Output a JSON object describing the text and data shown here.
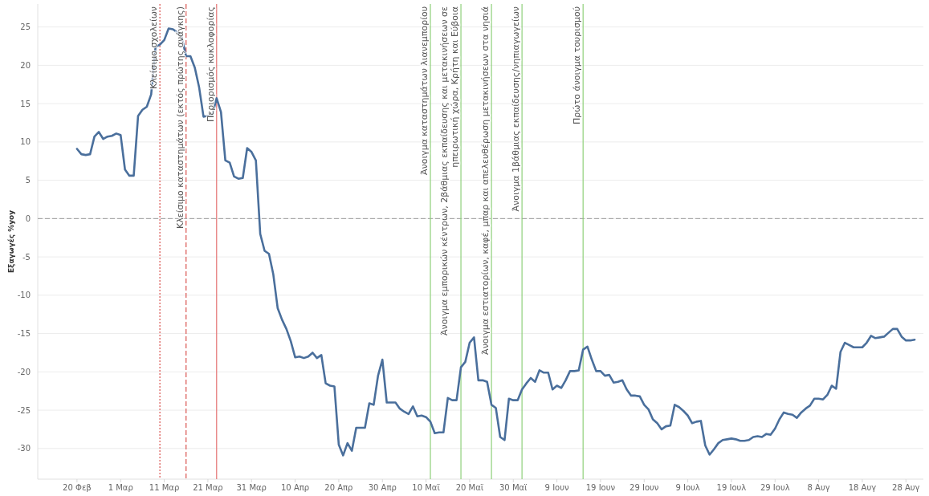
{
  "chart_data": {
    "type": "line",
    "ylabel": "Εξαγωγές %yoy",
    "x": [
      "--02-20",
      "--02-21",
      "--02-22",
      "--02-23",
      "--02-24",
      "--02-25",
      "--02-26",
      "--02-27",
      "--02-28",
      "--02-29",
      "--03-01",
      "--03-02",
      "--03-03",
      "--03-04",
      "--03-05",
      "--03-06",
      "--03-07",
      "--03-08",
      "--03-09",
      "--03-10",
      "--03-11",
      "--03-12",
      "--03-13",
      "--03-14",
      "--03-15",
      "--03-16",
      "--03-17",
      "--03-18",
      "--03-19",
      "--03-20",
      "--03-21",
      "--03-22",
      "--03-23",
      "--03-24",
      "--03-25",
      "--03-26",
      "--03-27",
      "--03-28",
      "--03-29",
      "--03-30",
      "--03-31",
      "--04-01",
      "--04-02",
      "--04-03",
      "--04-04",
      "--04-05",
      "--04-06",
      "--04-07",
      "--04-08",
      "--04-09",
      "--04-10",
      "--04-11",
      "--04-12",
      "--04-13",
      "--04-14",
      "--04-15",
      "--04-16",
      "--04-17",
      "--04-18",
      "--04-19",
      "--04-20",
      "--04-21",
      "--04-22",
      "--04-23",
      "--04-24",
      "--04-25",
      "--04-26",
      "--04-27",
      "--04-28",
      "--04-29",
      "--04-30",
      "--05-01",
      "--05-02",
      "--05-03",
      "--05-04",
      "--05-05",
      "--05-06",
      "--05-07",
      "--05-08",
      "--05-09",
      "--05-10",
      "--05-11",
      "--05-12",
      "--05-13",
      "--05-14",
      "--05-15",
      "--05-16",
      "--05-17",
      "--05-18",
      "--05-19",
      "--05-20",
      "--05-21",
      "--05-22",
      "--05-23",
      "--05-24",
      "--05-25",
      "--05-26",
      "--05-27",
      "--05-28",
      "--05-29",
      "--05-30",
      "--05-31",
      "--06-01",
      "--06-02",
      "--06-03",
      "--06-04",
      "--06-05",
      "--06-06",
      "--06-07",
      "--06-08",
      "--06-09",
      "--06-10",
      "--06-11",
      "--06-12",
      "--06-13",
      "--06-14",
      "--06-15",
      "--06-16",
      "--06-17",
      "--06-18",
      "--06-19",
      "--06-20",
      "--06-21",
      "--06-22",
      "--06-23",
      "--06-24",
      "--06-25",
      "--06-26",
      "--06-27",
      "--06-28",
      "--06-29",
      "--06-30",
      "--07-01",
      "--07-02",
      "--07-03",
      "--07-04",
      "--07-05",
      "--07-06",
      "--07-07",
      "--07-08",
      "--07-09",
      "--07-10",
      "--07-11",
      "--07-12",
      "--07-13",
      "--07-14",
      "--07-15",
      "--07-16",
      "--07-17",
      "--07-18",
      "--07-19",
      "--07-20",
      "--07-21",
      "--07-22",
      "--07-23",
      "--07-24",
      "--07-25",
      "--07-26",
      "--07-27",
      "--07-28",
      "--07-29",
      "--07-30",
      "--07-31",
      "--08-01",
      "--08-02",
      "--08-03",
      "--08-04",
      "--08-05",
      "--08-06",
      "--08-07",
      "--08-08",
      "--08-09",
      "--08-10",
      "--08-11",
      "--08-12",
      "--08-13",
      "--08-14",
      "--08-15",
      "--08-16",
      "--08-17",
      "--08-18",
      "--08-19",
      "--08-20",
      "--08-21",
      "--08-22",
      "--08-23",
      "--08-24",
      "--08-25",
      "--08-26",
      "--08-27",
      "--08-28",
      "--08-29",
      "--08-30"
    ],
    "series": [
      {
        "color": "#4a6f9c",
        "values": [
          9.1,
          8.4,
          8.3,
          8.4,
          10.7,
          11.3,
          10.4,
          10.7,
          10.8,
          11.1,
          10.9,
          6.4,
          5.6,
          5.6,
          13.4,
          14.2,
          14.6,
          16.2,
          22.4,
          22.7,
          23.3,
          24.8,
          24.7,
          24.3,
          23.7,
          21.2,
          21.2,
          19.7,
          17.1,
          13.3,
          13.4,
          13.5,
          15.7,
          13.9,
          7.6,
          7.3,
          5.5,
          5.2,
          5.3,
          9.2,
          8.7,
          7.6,
          -2,
          -4.2,
          -4.6,
          -7.3,
          -11.7,
          -13.2,
          -14.4,
          -16,
          -18.1,
          -18,
          -18.2,
          -18,
          -17.5,
          -18.2,
          -17.8,
          -21.5,
          -21.8,
          -21.9,
          -29.5,
          -30.9,
          -29.3,
          -30.3,
          -27.3,
          -27.3,
          -27.3,
          -24.1,
          -24.3,
          -20.5,
          -18.4,
          -24,
          -24,
          -24,
          -24.8,
          -25.2,
          -25.5,
          -24.5,
          -25.8,
          -25.7,
          -25.9,
          -26.5,
          -28,
          -27.9,
          -27.9,
          -23.4,
          -23.7,
          -23.7,
          -19.4,
          -18.7,
          -16.2,
          -15.5,
          -21.1,
          -21.1,
          -21.3,
          -24.3,
          -24.7,
          -28.5,
          -28.9,
          -23.5,
          -23.7,
          -23.7,
          -22.3,
          -21.5,
          -20.8,
          -21.3,
          -19.8,
          -20.1,
          -20.1,
          -22.3,
          -21.8,
          -22.1,
          -21.1,
          -19.9,
          -19.9,
          -19.8,
          -17.1,
          -16.7,
          -18.4,
          -19.9,
          -19.9,
          -20.5,
          -20.4,
          -21.4,
          -21.3,
          -21.1,
          -22.3,
          -23.1,
          -23.1,
          -23.2,
          -24.3,
          -24.9,
          -26.2,
          -26.7,
          -27.5,
          -27.1,
          -27,
          -24.3,
          -24.6,
          -25.1,
          -25.7,
          -26.7,
          -26.5,
          -26.4,
          -29.6,
          -30.8,
          -30.1,
          -29.3,
          -28.9,
          -28.8,
          -28.7,
          -28.8,
          -29,
          -29,
          -28.9,
          -28.5,
          -28.4,
          -28.5,
          -28.1,
          -28.2,
          -27.4,
          -26.2,
          -25.3,
          -25.5,
          -25.6,
          -26,
          -25.3,
          -24.8,
          -24.4,
          -23.5,
          -23.5,
          -23.6,
          -23,
          -21.8,
          -22.2,
          -17.4,
          -16.2,
          -16.5,
          -16.8,
          -16.8,
          -16.8,
          -16.2,
          -15.3,
          -15.6,
          -15.5,
          -15.4,
          -14.9,
          -14.4,
          -14.4,
          -15.4,
          -15.9,
          -15.9,
          -15.8
        ]
      }
    ],
    "xlim": [
      "--02-11",
      "--09-01"
    ],
    "xticks": [
      {
        "value": "--02-20",
        "label": "20 Φεβ"
      },
      {
        "value": "--03-01",
        "label": "1 Μαρ"
      },
      {
        "value": "--03-11",
        "label": "11 Μαρ"
      },
      {
        "value": "--03-21",
        "label": "21 Μαρ"
      },
      {
        "value": "--03-31",
        "label": "31 Μαρ"
      },
      {
        "value": "--04-10",
        "label": "10 Απρ"
      },
      {
        "value": "--04-20",
        "label": "20 Απρ"
      },
      {
        "value": "--04-30",
        "label": "30 Απρ"
      },
      {
        "value": "--05-10",
        "label": "10 Μαϊ"
      },
      {
        "value": "--05-20",
        "label": "20 Μαϊ"
      },
      {
        "value": "--05-30",
        "label": "30 Μαϊ"
      },
      {
        "value": "--06-09",
        "label": "9 Ιουν"
      },
      {
        "value": "--06-19",
        "label": "19 Ιουν"
      },
      {
        "value": "--06-29",
        "label": "29 Ιουν"
      },
      {
        "value": "--07-09",
        "label": "9 Ιουλ"
      },
      {
        "value": "--07-19",
        "label": "19 Ιουλ"
      },
      {
        "value": "--07-29",
        "label": "29 Ιουλ"
      },
      {
        "value": "--08-08",
        "label": "8 Αυγ"
      },
      {
        "value": "--08-18",
        "label": "18 Αυγ"
      },
      {
        "value": "--08-28",
        "label": "28 Αυγ"
      }
    ],
    "ylim": [
      -34,
      28
    ],
    "yticks": [
      -30,
      -25,
      -20,
      -15,
      -10,
      -5,
      0,
      5,
      10,
      15,
      20,
      25
    ],
    "grid": "y",
    "line_style": "solid",
    "ref_lines": [
      {
        "axis": "y",
        "value": 0,
        "color": "#9a9a9a",
        "line_style": "dashed"
      },
      {
        "axis": "x",
        "value": "--03-10",
        "label": "Κλείσιμο σχολείων",
        "color": "#d9534f",
        "line_style": "dotted"
      },
      {
        "axis": "x",
        "value": "--03-16",
        "label": "Κλείσιμο καταστημάτων (εκτός πρώτης ανάγκης)",
        "color": "#d9534f",
        "line_style": "dashed"
      },
      {
        "axis": "x",
        "value": "--03-23",
        "label": "Περιορισμός κυκλοφορίας",
        "color": "#e57373",
        "line_style": "solid"
      },
      {
        "axis": "x",
        "value": "--05-11",
        "label": "Άνοιγμα καταστημάτων λιανεμπορίου",
        "color": "#8fd07a",
        "line_style": "solid"
      },
      {
        "axis": "x",
        "value": "--05-18",
        "label": "Άνοιγμα εμπορικών κέντρων, 2βάθμιας εκπαίδευσης και μετακινήσεων σε ηπειρωτική χώρα, Κρήτη και Εύβοια",
        "color": "#8fd07a",
        "line_style": "solid"
      },
      {
        "axis": "x",
        "value": "--05-25",
        "label": "Άνοιγμα εστιατορίων, καφέ, μπαρ και απελευθέρωση μετακινήσεων στα νησιά",
        "color": "#8fd07a",
        "line_style": "solid"
      },
      {
        "axis": "x",
        "value": "--06-01",
        "label": "Άνοιγμα 1βάθμιας εκπαίδευσης/νηπιαγωγείων",
        "color": "#8fd07a",
        "line_style": "solid"
      },
      {
        "axis": "x",
        "value": "--06-15",
        "label": "Πρώτο άνοιγμα τουρισμού",
        "color": "#8fd07a",
        "line_style": "solid"
      }
    ]
  }
}
